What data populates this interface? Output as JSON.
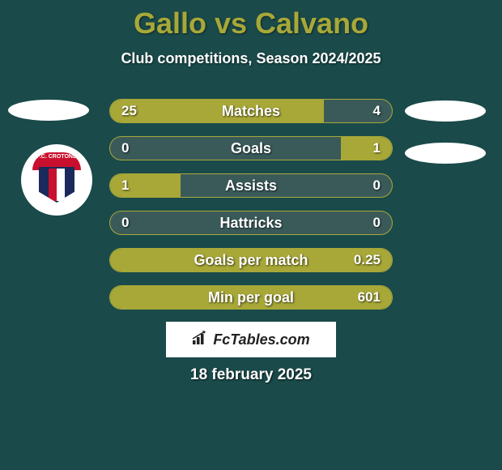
{
  "title": "Gallo vs Calvano",
  "subtitle": "Club competitions, Season 2024/2025",
  "date": "18 february 2025",
  "brand": "FcTables.com",
  "club_logo_text": "F.C. CROTONE",
  "colors": {
    "background": "#1a4a4a",
    "accent": "#a8a838",
    "bar_bg": "#3a5a5a",
    "text": "#ffffff",
    "logo_red": "#c8102e",
    "logo_blue": "#1a2a5a"
  },
  "bars": [
    {
      "label": "Matches",
      "left": "25",
      "right": "4",
      "left_pct": 76,
      "right_pct": 0,
      "fill_mode": "left"
    },
    {
      "label": "Goals",
      "left": "0",
      "right": "1",
      "left_pct": 0,
      "right_pct": 18,
      "fill_mode": "right"
    },
    {
      "label": "Assists",
      "left": "1",
      "right": "0",
      "left_pct": 25,
      "right_pct": 0,
      "fill_mode": "left"
    },
    {
      "label": "Hattricks",
      "left": "0",
      "right": "0",
      "left_pct": 0,
      "right_pct": 0,
      "fill_mode": "none"
    },
    {
      "label": "Goals per match",
      "left": "",
      "right": "0.25",
      "left_pct": 0,
      "right_pct": 0,
      "fill_mode": "full"
    },
    {
      "label": "Min per goal",
      "left": "",
      "right": "601",
      "left_pct": 0,
      "right_pct": 0,
      "fill_mode": "full"
    }
  ]
}
